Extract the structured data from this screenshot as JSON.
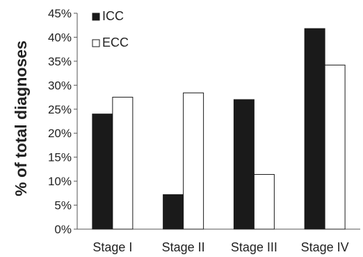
{
  "chart_data": {
    "type": "bar",
    "title": "",
    "xlabel": "",
    "ylabel": "% of total diagnoses",
    "categories": [
      "Stage I",
      "Stage II",
      "Stage III",
      "Stage IV"
    ],
    "series": [
      {
        "name": "ICC",
        "values": [
          24,
          7.2,
          27,
          41.8
        ],
        "color": "#1a1a1a"
      },
      {
        "name": "ECC",
        "values": [
          27.5,
          28.4,
          11.4,
          34.2
        ],
        "color": "#ffffff"
      }
    ],
    "ylim": [
      0,
      45
    ],
    "yticks": [
      {
        "value": 0,
        "label": "0%"
      },
      {
        "value": 5,
        "label": "5%"
      },
      {
        "value": 10,
        "label": "10%"
      },
      {
        "value": 15,
        "label": "15%"
      },
      {
        "value": 20,
        "label": "20%"
      },
      {
        "value": 25,
        "label": "25%"
      },
      {
        "value": 30,
        "label": "30%"
      },
      {
        "value": 35,
        "label": "35%"
      },
      {
        "value": 40,
        "label": "40%"
      },
      {
        "value": 45,
        "label": "45%"
      }
    ],
    "grid": false,
    "legend_position": "top-left"
  }
}
